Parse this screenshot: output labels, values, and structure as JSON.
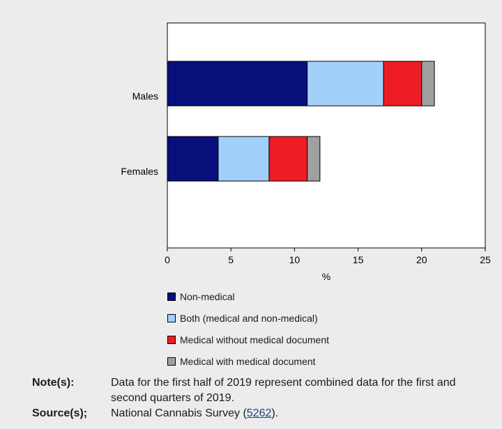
{
  "chart_data": {
    "type": "bar",
    "orientation": "horizontal",
    "stacked": true,
    "categories": [
      "Males",
      "Females"
    ],
    "series": [
      {
        "name": "Non-medical",
        "values": [
          11,
          4
        ],
        "color": "#07107a"
      },
      {
        "name": "Both (medical and non-medical)",
        "values": [
          6,
          4
        ],
        "color": "#a3cffb"
      },
      {
        "name": "Medical without medical document",
        "values": [
          3,
          3
        ],
        "color": "#ee1c25"
      },
      {
        "name": "Medical with medical document",
        "values": [
          1,
          1
        ],
        "color": "#a0a0a0"
      }
    ],
    "xlabel": "%",
    "xlim": [
      0,
      25
    ],
    "xticks": [
      "0",
      "5",
      "10",
      "15",
      "20",
      "25"
    ],
    "grid": false,
    "legend_position": "bottom"
  },
  "footer": {
    "note_label": "Note(s):",
    "note_text": "Data for the first half of 2019 represent combined data for the first and second quarters of 2019.",
    "source_label": "Source(s);",
    "source_prefix": "National Cannabis Survey (",
    "source_link": "5262",
    "source_suffix": ")."
  }
}
